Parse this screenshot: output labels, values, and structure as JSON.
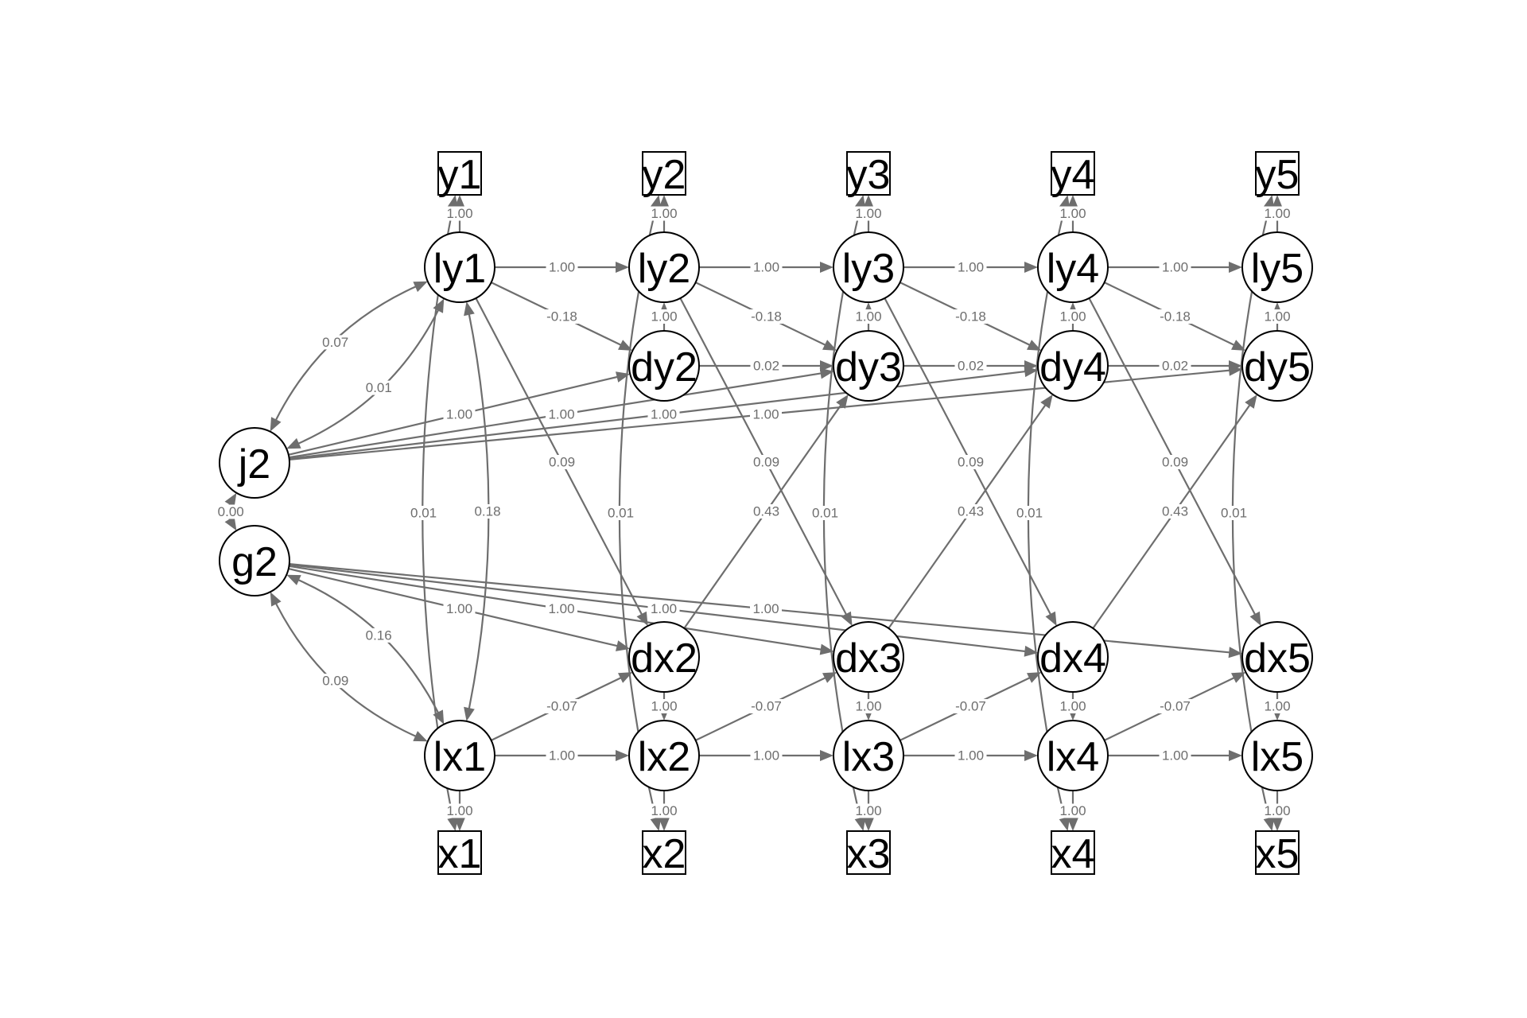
{
  "diagram": {
    "latent_nodes": [
      "j2",
      "g2",
      "ly1",
      "ly2",
      "ly3",
      "ly4",
      "ly5",
      "dy2",
      "dy3",
      "dy4",
      "dy5",
      "dx2",
      "dx3",
      "dx4",
      "dx5",
      "lx1",
      "lx2",
      "lx3",
      "lx4",
      "lx5"
    ],
    "observed_nodes": [
      "y1",
      "y2",
      "y3",
      "y4",
      "y5",
      "x1",
      "x2",
      "x3",
      "x4",
      "x5"
    ],
    "edges": [
      {
        "from": "ly1",
        "to": "y1",
        "label": "1.00"
      },
      {
        "from": "ly2",
        "to": "y2",
        "label": "1.00"
      },
      {
        "from": "ly3",
        "to": "y3",
        "label": "1.00"
      },
      {
        "from": "ly4",
        "to": "y4",
        "label": "1.00"
      },
      {
        "from": "ly5",
        "to": "y5",
        "label": "1.00"
      },
      {
        "from": "lx1",
        "to": "x1",
        "label": "1.00"
      },
      {
        "from": "lx2",
        "to": "x2",
        "label": "1.00"
      },
      {
        "from": "lx3",
        "to": "x3",
        "label": "1.00"
      },
      {
        "from": "lx4",
        "to": "x4",
        "label": "1.00"
      },
      {
        "from": "lx5",
        "to": "x5",
        "label": "1.00"
      },
      {
        "from": "ly1",
        "to": "ly2",
        "label": "1.00"
      },
      {
        "from": "ly2",
        "to": "ly3",
        "label": "1.00"
      },
      {
        "from": "ly3",
        "to": "ly4",
        "label": "1.00"
      },
      {
        "from": "ly4",
        "to": "ly5",
        "label": "1.00"
      },
      {
        "from": "lx1",
        "to": "lx2",
        "label": "1.00"
      },
      {
        "from": "lx2",
        "to": "lx3",
        "label": "1.00"
      },
      {
        "from": "lx3",
        "to": "lx4",
        "label": "1.00"
      },
      {
        "from": "lx4",
        "to": "lx5",
        "label": "1.00"
      },
      {
        "from": "dy2",
        "to": "ly2",
        "label": "1.00"
      },
      {
        "from": "dy3",
        "to": "ly3",
        "label": "1.00"
      },
      {
        "from": "dy4",
        "to": "ly4",
        "label": "1.00"
      },
      {
        "from": "dy5",
        "to": "ly5",
        "label": "1.00"
      },
      {
        "from": "dx2",
        "to": "lx2",
        "label": "1.00"
      },
      {
        "from": "dx3",
        "to": "lx3",
        "label": "1.00"
      },
      {
        "from": "dx4",
        "to": "lx4",
        "label": "1.00"
      },
      {
        "from": "dx5",
        "to": "lx5",
        "label": "1.00"
      },
      {
        "from": "ly1",
        "to": "dy2",
        "label": "-0.18"
      },
      {
        "from": "ly2",
        "to": "dy3",
        "label": "-0.18"
      },
      {
        "from": "ly3",
        "to": "dy4",
        "label": "-0.18"
      },
      {
        "from": "ly4",
        "to": "dy5",
        "label": "-0.18"
      },
      {
        "from": "lx1",
        "to": "dx2",
        "label": "-0.07"
      },
      {
        "from": "lx2",
        "to": "dx3",
        "label": "-0.07"
      },
      {
        "from": "lx3",
        "to": "dx4",
        "label": "-0.07"
      },
      {
        "from": "lx4",
        "to": "dx5",
        "label": "-0.07"
      },
      {
        "from": "dy2",
        "to": "dy3",
        "label": "0.02"
      },
      {
        "from": "dy3",
        "to": "dy4",
        "label": "0.02"
      },
      {
        "from": "dy4",
        "to": "dy5",
        "label": "0.02"
      },
      {
        "from": "ly1",
        "to": "dx2",
        "label": "0.09"
      },
      {
        "from": "ly2",
        "to": "dx3",
        "label": "0.09"
      },
      {
        "from": "ly3",
        "to": "dx4",
        "label": "0.09"
      },
      {
        "from": "ly4",
        "to": "dx5",
        "label": "0.09"
      },
      {
        "from": "dx2",
        "to": "dy3",
        "label": "0.43"
      },
      {
        "from": "dx3",
        "to": "dy4",
        "label": "0.43"
      },
      {
        "from": "dx4",
        "to": "dy5",
        "label": "0.43"
      },
      {
        "from": "j2",
        "to": "dy2",
        "label": "1.00"
      },
      {
        "from": "j2",
        "to": "dy3",
        "label": "1.00"
      },
      {
        "from": "j2",
        "to": "dy4",
        "label": "1.00"
      },
      {
        "from": "j2",
        "to": "dy5",
        "label": "1.00"
      },
      {
        "from": "g2",
        "to": "dx2",
        "label": "1.00"
      },
      {
        "from": "g2",
        "to": "dx3",
        "label": "1.00"
      },
      {
        "from": "g2",
        "to": "dx4",
        "label": "1.00"
      },
      {
        "from": "g2",
        "to": "dx5",
        "label": "1.00"
      }
    ],
    "covariances": [
      {
        "a": "j2",
        "b": "ly1",
        "label": "0.07",
        "bend": -0.18
      },
      {
        "a": "j2",
        "b": "ly1",
        "label": "0.01",
        "bend": 0.18
      },
      {
        "a": "g2",
        "b": "lx1",
        "label": "0.09",
        "bend": 0.18
      },
      {
        "a": "g2",
        "b": "lx1",
        "label": "0.16",
        "bend": -0.18
      },
      {
        "a": "j2",
        "b": "g2",
        "label": "0.00",
        "bend": 0.3
      },
      {
        "a": "y1",
        "b": "x1",
        "label": "0.01",
        "bend": 0.1
      },
      {
        "a": "ly1",
        "b": "lx1",
        "label": "0.18",
        "bend": -0.1
      },
      {
        "a": "y2",
        "b": "x2",
        "label": "0.01",
        "bend": 0.12
      },
      {
        "a": "y3",
        "b": "x3",
        "label": "0.01",
        "bend": 0.12
      },
      {
        "a": "y4",
        "b": "x4",
        "label": "0.01",
        "bend": 0.12
      },
      {
        "a": "y5",
        "b": "x5",
        "label": "0.01",
        "bend": 0.12
      }
    ]
  }
}
